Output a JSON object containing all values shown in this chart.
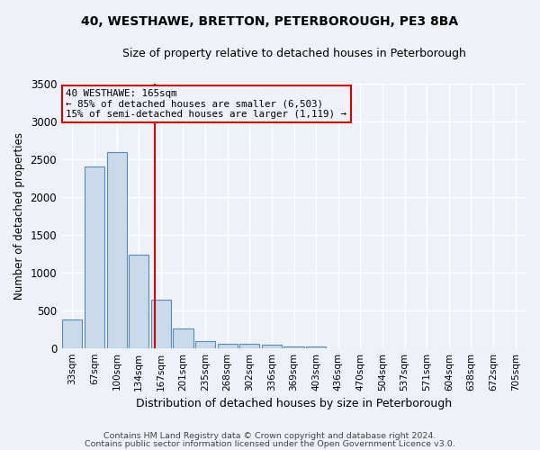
{
  "title": "40, WESTHAWE, BRETTON, PETERBOROUGH, PE3 8BA",
  "subtitle": "Size of property relative to detached houses in Peterborough",
  "xlabel": "Distribution of detached houses by size in Peterborough",
  "ylabel": "Number of detached properties",
  "footer_line1": "Contains HM Land Registry data © Crown copyright and database right 2024.",
  "footer_line2": "Contains public sector information licensed under the Open Government Licence v3.0.",
  "bar_color": "#c9daea",
  "bar_edge_color": "#5a8ab8",
  "vline_color": "#cc0000",
  "annotation_text_line1": "40 WESTHAWE: 165sqm",
  "annotation_text_line2": "← 85% of detached houses are smaller (6,503)",
  "annotation_text_line3": "15% of semi-detached houses are larger (1,119) →",
  "annotation_box_edgecolor": "#cc0000",
  "categories": [
    "33sqm",
    "67sqm",
    "100sqm",
    "134sqm",
    "167sqm",
    "201sqm",
    "235sqm",
    "268sqm",
    "302sqm",
    "336sqm",
    "369sqm",
    "403sqm",
    "436sqm",
    "470sqm",
    "504sqm",
    "537sqm",
    "571sqm",
    "604sqm",
    "638sqm",
    "672sqm",
    "705sqm"
  ],
  "values": [
    380,
    2400,
    2600,
    1230,
    640,
    260,
    95,
    60,
    55,
    40,
    20,
    20,
    0,
    0,
    0,
    0,
    0,
    0,
    0,
    0,
    0
  ],
  "ylim": [
    0,
    3500
  ],
  "yticks": [
    0,
    500,
    1000,
    1500,
    2000,
    2500,
    3000,
    3500
  ],
  "background_color": "#eef2f8",
  "grid_color": "#d0d8e8",
  "vline_x_index": 3.72
}
